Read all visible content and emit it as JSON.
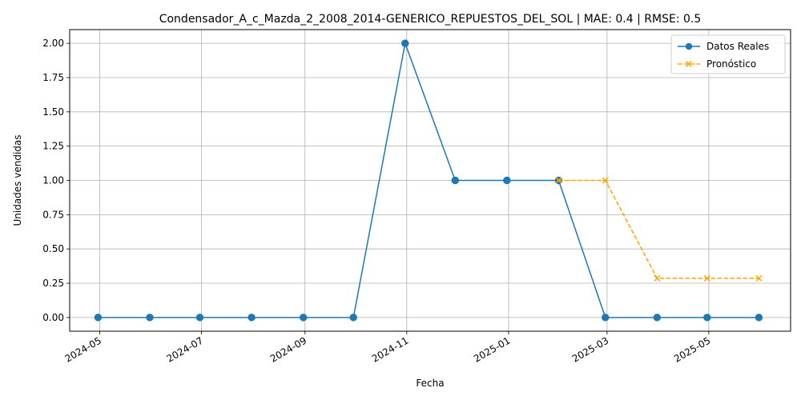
{
  "chart_data": {
    "type": "line",
    "title": "Condensador_A_c_Mazda_2_2008_2014-GENERICO_REPUESTOS_DEL_SOL | MAE: 0.4 | RMSE: 0.5",
    "xlabel": "Fecha",
    "ylabel": "Unidades vendidas",
    "x_tick_labels": [
      "2024-05",
      "2024-07",
      "2024-09",
      "2024-11",
      "2025-01",
      "2025-03",
      "2025-05"
    ],
    "y_ticks": [
      0.0,
      0.25,
      0.5,
      0.75,
      1.0,
      1.25,
      1.5,
      1.75,
      2.0
    ],
    "y_tick_labels": [
      "0.00",
      "0.25",
      "0.50",
      "0.75",
      "1.00",
      "1.25",
      "1.50",
      "1.75",
      "2.00"
    ],
    "ylim": [
      -0.1,
      2.1
    ],
    "xlim": [
      "2024-04-13",
      "2025-06-19"
    ],
    "grid": true,
    "legend_position": "upper right",
    "series": [
      {
        "name": "Datos Reales",
        "color": "#1f77b4",
        "marker": "circle",
        "linestyle": "solid",
        "x": [
          "2024-04-30",
          "2024-05-31",
          "2024-06-30",
          "2024-07-31",
          "2024-08-31",
          "2024-09-30",
          "2024-10-31",
          "2024-11-30",
          "2024-12-31",
          "2025-01-31",
          "2025-02-28",
          "2025-03-31",
          "2025-04-30",
          "2025-05-31"
        ],
        "values": [
          0,
          0,
          0,
          0,
          0,
          0,
          2,
          1,
          1,
          1,
          0,
          0,
          0,
          0
        ]
      },
      {
        "name": "Pronóstico",
        "color": "#ffa500",
        "marker": "x",
        "linestyle": "dashed",
        "x": [
          "2025-01-31",
          "2025-02-28",
          "2025-03-31",
          "2025-04-30",
          "2025-05-31"
        ],
        "values": [
          1,
          1,
          0.2857,
          0.2857,
          0.2857
        ]
      }
    ]
  }
}
